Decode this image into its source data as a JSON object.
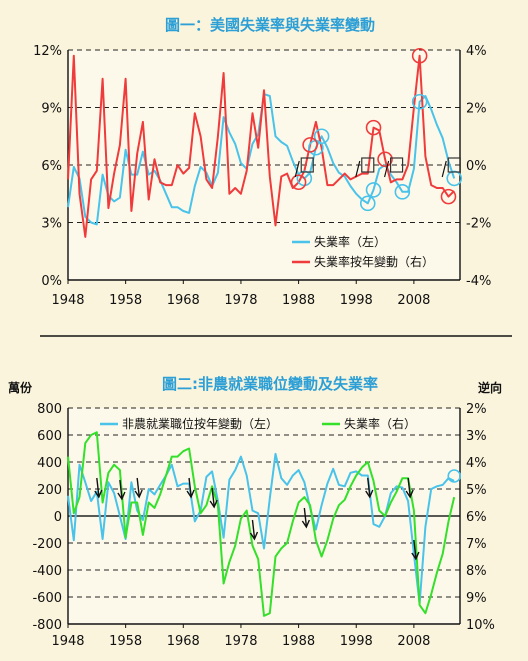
{
  "colors": {
    "unemployment": "#49c3ea",
    "yoy_change": "#ef3b3b",
    "payrolls": "#49c3ea",
    "unemployment_inverted": "#34e02a",
    "title": "#2c9fd6"
  },
  "chart_data": [
    {
      "type": "line",
      "title": "圖一：美國失業率與失業率變動",
      "x_ticks": [
        "1948",
        "1958",
        "1968",
        "1978",
        "1988",
        "1998",
        "2008"
      ],
      "y_left_ticks": [
        "12%",
        "9%",
        "6%",
        "3%",
        "0%"
      ],
      "y_right_ticks": [
        "4%",
        "2%",
        "0%",
        "-2%",
        "-4%"
      ],
      "ylim_left": [
        0,
        12
      ],
      "ylim_right": [
        -4,
        4
      ],
      "xlim": [
        1948,
        2016
      ],
      "grid": "dashed horizontal",
      "legend": "bottom-right",
      "series": [
        {
          "name": "失業率（左）",
          "axis": "left",
          "x": [
            1948,
            1949,
            1950,
            1951,
            1952,
            1953,
            1954,
            1955,
            1956,
            1957,
            1958,
            1959,
            1960,
            1961,
            1962,
            1963,
            1964,
            1965,
            1966,
            1967,
            1968,
            1969,
            1970,
            1971,
            1972,
            1973,
            1974,
            1975,
            1976,
            1977,
            1978,
            1979,
            1980,
            1981,
            1982,
            1983,
            1984,
            1985,
            1986,
            1987,
            1988,
            1989,
            1990,
            1991,
            1992,
            1993,
            1994,
            1995,
            1996,
            1997,
            1998,
            1999,
            2000,
            2001,
            2002,
            2003,
            2004,
            2005,
            2006,
            2007,
            2008,
            2009,
            2010,
            2011,
            2012,
            2013,
            2014,
            2015
          ],
          "values": [
            3.8,
            5.9,
            5.3,
            3.3,
            3.0,
            2.9,
            5.5,
            4.4,
            4.1,
            4.3,
            6.8,
            5.5,
            5.5,
            6.7,
            5.5,
            5.7,
            5.2,
            4.5,
            3.8,
            3.8,
            3.6,
            3.5,
            4.9,
            5.9,
            5.6,
            4.9,
            5.6,
            8.5,
            7.7,
            7.1,
            6.1,
            5.8,
            7.1,
            7.6,
            9.7,
            9.6,
            7.5,
            7.2,
            7.0,
            6.2,
            5.5,
            5.3,
            5.6,
            6.9,
            7.5,
            6.9,
            6.1,
            5.6,
            5.4,
            4.9,
            4.5,
            4.2,
            4.0,
            4.7,
            5.8,
            6.0,
            5.5,
            5.1,
            4.6,
            4.6,
            5.8,
            9.3,
            9.6,
            8.9,
            8.1,
            7.4,
            6.2,
            5.3
          ]
        },
        {
          "name": "失業率按年變動（右）",
          "axis": "right",
          "x": [
            1948,
            1949,
            1950,
            1951,
            1952,
            1953,
            1954,
            1955,
            1956,
            1957,
            1958,
            1959,
            1960,
            1961,
            1962,
            1963,
            1964,
            1965,
            1966,
            1967,
            1968,
            1969,
            1970,
            1971,
            1972,
            1973,
            1974,
            1975,
            1976,
            1977,
            1978,
            1979,
            1980,
            1981,
            1982,
            1983,
            1984,
            1985,
            1986,
            1987,
            1988,
            1989,
            1990,
            1991,
            1992,
            1993,
            1994,
            1995,
            1996,
            1997,
            1998,
            1999,
            2000,
            2001,
            2002,
            2003,
            2004,
            2005,
            2006,
            2007,
            2008,
            2009,
            2010,
            2011,
            2012,
            2013,
            2014,
            2015
          ],
          "values": [
            -0.5,
            3.8,
            -1.0,
            -2.5,
            -0.5,
            -0.2,
            3.0,
            -1.5,
            -0.3,
            0.7,
            3.0,
            -1.6,
            0.4,
            1.5,
            -1.2,
            0.2,
            -0.6,
            -0.7,
            -0.7,
            0.0,
            -0.3,
            -0.1,
            1.8,
            1.0,
            -0.5,
            -0.8,
            1.0,
            3.2,
            -1.0,
            -0.8,
            -1.0,
            -0.2,
            1.8,
            0.6,
            2.6,
            -0.4,
            -2.1,
            -0.4,
            -0.3,
            -0.8,
            -0.6,
            -0.2,
            0.7,
            1.5,
            0.6,
            -0.7,
            -0.7,
            -0.5,
            -0.3,
            -0.5,
            -0.4,
            -0.3,
            -0.3,
            1.3,
            1.2,
            0.2,
            -0.6,
            -0.5,
            -0.5,
            0.0,
            2.0,
            3.8,
            0.3,
            -0.7,
            -0.8,
            -0.8,
            -1.1,
            -0.9
          ]
        }
      ]
    },
    {
      "type": "line",
      "title": "圖二:非農就業職位變動及失業率",
      "y_left_unit": "萬份",
      "y_right_unit": "逆向",
      "x_ticks": [
        "1948",
        "1958",
        "1968",
        "1978",
        "1988",
        "1998",
        "2008"
      ],
      "y_left_ticks": [
        "800",
        "600",
        "400",
        "200",
        "0",
        "-200",
        "-400",
        "-600",
        "-800"
      ],
      "y_right_ticks": [
        "2%",
        "3%",
        "4%",
        "5%",
        "6%",
        "7%",
        "8%",
        "9%",
        "10%"
      ],
      "ylim_left": [
        -800,
        800
      ],
      "ylim_right": [
        10,
        2
      ],
      "xlim": [
        1948,
        2016
      ],
      "grid": "dashed horizontal",
      "legend": "top",
      "series": [
        {
          "name": "非農就業職位按年變動（左）",
          "axis": "left",
          "x": [
            1948,
            1949,
            1950,
            1951,
            1952,
            1953,
            1954,
            1955,
            1956,
            1957,
            1958,
            1959,
            1960,
            1961,
            1962,
            1963,
            1964,
            1965,
            1966,
            1967,
            1968,
            1969,
            1970,
            1971,
            1972,
            1973,
            1974,
            1975,
            1976,
            1977,
            1978,
            1979,
            1980,
            1981,
            1982,
            1983,
            1984,
            1985,
            1986,
            1987,
            1988,
            1989,
            1990,
            1991,
            1992,
            1993,
            1994,
            1995,
            1996,
            1997,
            1998,
            1999,
            2000,
            2001,
            2002,
            2003,
            2004,
            2005,
            2006,
            2007,
            2008,
            2009,
            2010,
            2011,
            2012,
            2013,
            2014,
            2015
          ],
          "values": [
            150,
            -180,
            380,
            250,
            110,
            180,
            -170,
            250,
            170,
            0,
            -170,
            250,
            40,
            -30,
            200,
            160,
            230,
            300,
            380,
            220,
            240,
            240,
            -40,
            40,
            290,
            330,
            110,
            -160,
            270,
            340,
            440,
            300,
            40,
            20,
            -240,
            130,
            460,
            280,
            230,
            300,
            340,
            250,
            60,
            -100,
            80,
            240,
            350,
            230,
            220,
            320,
            330,
            300,
            300,
            -60,
            -80,
            0,
            170,
            220,
            210,
            110,
            -280,
            -650,
            -80,
            200,
            220,
            230,
            280,
            260
          ]
        },
        {
          "name": "失業率（右）",
          "axis": "right",
          "x": [
            1948,
            1949,
            1950,
            1951,
            1952,
            1953,
            1954,
            1955,
            1956,
            1957,
            1958,
            1959,
            1960,
            1961,
            1962,
            1963,
            1964,
            1965,
            1966,
            1967,
            1968,
            1969,
            1970,
            1971,
            1972,
            1973,
            1974,
            1975,
            1976,
            1977,
            1978,
            1979,
            1980,
            1981,
            1982,
            1983,
            1984,
            1985,
            1986,
            1987,
            1988,
            1989,
            1990,
            1991,
            1992,
            1993,
            1994,
            1995,
            1996,
            1997,
            1998,
            1999,
            2000,
            2001,
            2002,
            2003,
            2004,
            2005,
            2006,
            2007,
            2008,
            2009,
            2010,
            2011,
            2012,
            2013,
            2014,
            2015
          ],
          "values": [
            3.8,
            5.9,
            5.3,
            3.3,
            3.0,
            2.9,
            5.5,
            4.4,
            4.1,
            4.3,
            6.8,
            5.5,
            5.5,
            6.7,
            5.5,
            5.7,
            5.2,
            4.5,
            3.8,
            3.8,
            3.6,
            3.5,
            4.9,
            5.9,
            5.6,
            4.9,
            5.6,
            8.5,
            7.7,
            7.1,
            6.1,
            5.8,
            7.1,
            7.6,
            9.7,
            9.6,
            7.5,
            7.2,
            7.0,
            6.2,
            5.5,
            5.3,
            5.6,
            6.9,
            7.5,
            6.9,
            6.1,
            5.6,
            5.4,
            4.9,
            4.5,
            4.2,
            4.0,
            4.7,
            5.8,
            6.0,
            5.5,
            5.1,
            4.6,
            4.6,
            5.8,
            9.3,
            9.6,
            8.9,
            8.1,
            7.4,
            6.2,
            5.3
          ]
        }
      ]
    }
  ]
}
